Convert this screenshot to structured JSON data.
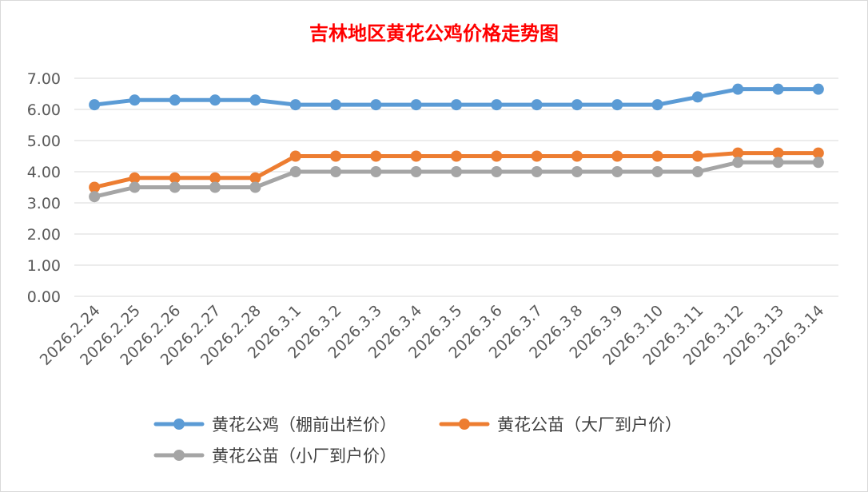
{
  "chart_data": {
    "type": "line",
    "title": "吉林地区黄花公鸡价格走势图",
    "xlabel": "",
    "ylabel": "",
    "ylim": [
      0,
      7
    ],
    "yticks": [
      "0.00",
      "1.00",
      "2.00",
      "3.00",
      "4.00",
      "5.00",
      "6.00",
      "7.00"
    ],
    "grid": true,
    "legend_position": "bottom",
    "categories": [
      "2026.2.24",
      "2026.2.25",
      "2026.2.26",
      "2026.2.27",
      "2026.2.28",
      "2026.3.1",
      "2026.3.2",
      "2026.3.3",
      "2026.3.4",
      "2026.3.5",
      "2026.3.6",
      "2026.3.7",
      "2026.3.8",
      "2026.3.9",
      "2026.3.10",
      "2026.3.11",
      "2026.3.12",
      "2026.3.13",
      "2026.3.14"
    ],
    "series": [
      {
        "name": "黄花公鸡（棚前出栏价）",
        "color": "#5b9bd5",
        "values": [
          6.15,
          6.3,
          6.3,
          6.3,
          6.3,
          6.15,
          6.15,
          6.15,
          6.15,
          6.15,
          6.15,
          6.15,
          6.15,
          6.15,
          6.15,
          6.4,
          6.65,
          6.65,
          6.65
        ]
      },
      {
        "name": "黄花公苗（大厂到户价）",
        "color": "#ed7d31",
        "values": [
          3.5,
          3.8,
          3.8,
          3.8,
          3.8,
          4.5,
          4.5,
          4.5,
          4.5,
          4.5,
          4.5,
          4.5,
          4.5,
          4.5,
          4.5,
          4.5,
          4.6,
          4.6,
          4.6
        ]
      },
      {
        "name": "黄花公苗（小厂到户价）",
        "color": "#a5a5a5",
        "values": [
          3.2,
          3.5,
          3.5,
          3.5,
          3.5,
          4.0,
          4.0,
          4.0,
          4.0,
          4.0,
          4.0,
          4.0,
          4.0,
          4.0,
          4.0,
          4.0,
          4.3,
          4.3,
          4.3
        ]
      }
    ],
    "title_color": "#ff0000"
  }
}
